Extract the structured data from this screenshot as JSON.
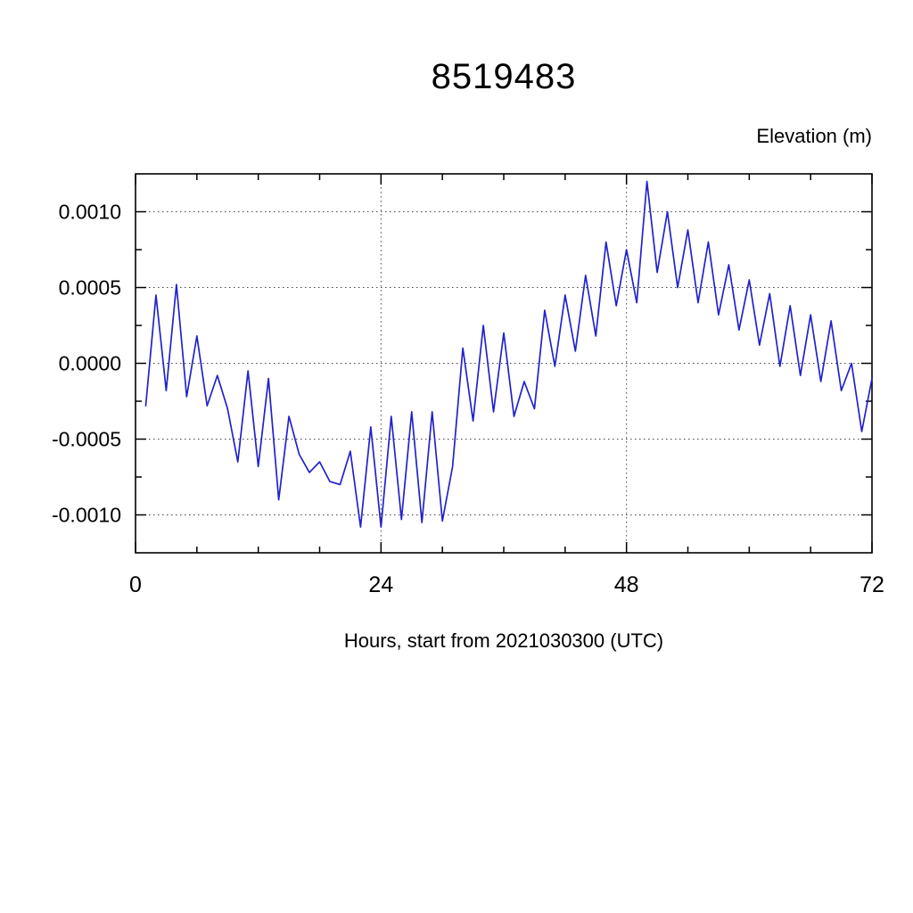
{
  "page": {
    "title": "8519483",
    "right_axis_title": "Elevation (m)",
    "x_axis_title": "Hours, start from 2021030300 (UTC)"
  },
  "chart_data": {
    "type": "line",
    "title": "8519483",
    "ylabel": "Elevation (m)",
    "xlabel": "Hours, start from 2021030300 (UTC)",
    "line_color": "#2222cc",
    "grid": true,
    "grid_style": "dotted",
    "xlim": [
      0,
      72
    ],
    "ylim": [
      -0.00125,
      0.00125
    ],
    "x_major_ticks": [
      0,
      24,
      48,
      72
    ],
    "x_tick_labels": [
      "0",
      "24",
      "48",
      "72"
    ],
    "x_minor_step": 6,
    "y_major_ticks": [
      -0.001,
      -0.0005,
      0.0,
      0.0005,
      0.001
    ],
    "y_tick_labels": [
      "-0.0010",
      "-0.0005",
      "0.0000",
      "0.0005",
      "0.0010"
    ],
    "y_minor_step": 0.00025,
    "x": [
      1,
      2,
      3,
      4,
      5,
      6,
      7,
      8,
      9,
      10,
      11,
      12,
      13,
      14,
      15,
      16,
      17,
      18,
      19,
      20,
      21,
      22,
      23,
      24,
      25,
      26,
      27,
      28,
      29,
      30,
      31,
      32,
      33,
      34,
      35,
      36,
      37,
      38,
      39,
      40,
      41,
      42,
      43,
      44,
      45,
      46,
      47,
      48,
      49,
      50,
      51,
      52,
      53,
      54,
      55,
      56,
      57,
      58,
      59,
      60,
      61,
      62,
      63,
      64,
      65,
      66,
      67,
      68,
      69,
      70,
      71,
      72
    ],
    "values": [
      -0.00028,
      0.00045,
      -0.00018,
      0.00052,
      -0.00022,
      0.00018,
      -0.00028,
      -8e-05,
      -0.0003,
      -0.00065,
      -5e-05,
      -0.00068,
      -0.0001,
      -0.0009,
      -0.00035,
      -0.0006,
      -0.00072,
      -0.00065,
      -0.00078,
      -0.0008,
      -0.00058,
      -0.00108,
      -0.00042,
      -0.00108,
      -0.00035,
      -0.00103,
      -0.00032,
      -0.00105,
      -0.00032,
      -0.00104,
      -0.00068,
      0.0001,
      -0.00038,
      0.00025,
      -0.00032,
      0.0002,
      -0.00035,
      -0.00012,
      -0.0003,
      0.00035,
      -2e-05,
      0.00045,
      8e-05,
      0.00058,
      0.00018,
      0.0008,
      0.00038,
      0.00075,
      0.0004,
      0.0012,
      0.0006,
      0.001,
      0.0005,
      0.00088,
      0.0004,
      0.0008,
      0.00032,
      0.00065,
      0.00022,
      0.00055,
      0.00012,
      0.00046,
      -2e-05,
      0.00038,
      -8e-05,
      0.00032,
      -0.00012,
      0.00028,
      -0.00018,
      0.0,
      -0.00045,
      -0.0001
    ]
  }
}
